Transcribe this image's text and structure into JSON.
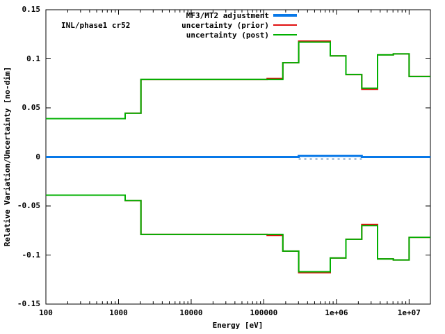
{
  "annotation": "INL/phase1 cr52",
  "legend": {
    "items": [
      {
        "label": "MF3/MT2 adjustment",
        "color": "#0878e8",
        "thickness": 4
      },
      {
        "label": "uncertainty (prior)",
        "color": "#e01010",
        "thickness": 2
      },
      {
        "label": "uncertainty (post)",
        "color": "#00b000",
        "thickness": 2
      }
    ]
  },
  "axes": {
    "xlabel": "Energy [eV]",
    "ylabel": "Relative Variation/Uncertainty [no-dim]",
    "x_scale": "log",
    "xlim": [
      100,
      19640000
    ],
    "ylim": [
      -0.15,
      0.15
    ],
    "x_tick_values": [
      100,
      1000,
      10000,
      100000,
      1000000,
      10000000
    ],
    "x_tick_labels": [
      "100",
      "1000",
      "10000",
      "100000",
      "1e+06",
      "1e+07"
    ],
    "y_tick_values": [
      0.15,
      0.1,
      0.05,
      0,
      -0.05,
      -0.1,
      -0.15
    ],
    "y_tick_labels": [
      "0.15",
      "0.1",
      "0.05",
      "0",
      "-0.05",
      "-0.1",
      "-0.15"
    ],
    "grid": "off",
    "legend_position": "top-right-inside"
  },
  "chart_data": {
    "type": "line",
    "style": "step-histogram",
    "x_boundaries": [
      100,
      1234,
      2035,
      111000,
      183000,
      302000,
      821000,
      1350000,
      2230000,
      3680000,
      6070000,
      10000000,
      19640000
    ],
    "series": [
      {
        "name": "MF3/MT2 adjustment",
        "color": "#0878e8",
        "width": 3,
        "values": [
          0,
          0,
          0,
          0,
          0,
          0.001,
          0.001,
          0.001,
          0,
          0,
          0,
          0
        ]
      },
      {
        "name": "uncertainty (prior) upper",
        "color": "#e01010",
        "width": 2,
        "values": [
          0.039,
          0.0445,
          0.079,
          0.08,
          0.096,
          0.118,
          0.103,
          0.084,
          0.069,
          0.104,
          0.105,
          0.082
        ]
      },
      {
        "name": "uncertainty (prior) lower",
        "color": "#e01010",
        "width": 2,
        "values": [
          -0.039,
          -0.0445,
          -0.079,
          -0.08,
          -0.096,
          -0.118,
          -0.103,
          -0.084,
          -0.069,
          -0.104,
          -0.105,
          -0.082
        ]
      },
      {
        "name": "uncertainty (post) upper",
        "color": "#00b000",
        "width": 2,
        "values": [
          0.039,
          0.0445,
          0.079,
          0.079,
          0.096,
          0.117,
          0.103,
          0.084,
          0.07,
          0.104,
          0.105,
          0.082
        ]
      },
      {
        "name": "uncertainty (post) lower",
        "color": "#00b000",
        "width": 2,
        "values": [
          -0.039,
          -0.0445,
          -0.079,
          -0.079,
          -0.096,
          -0.117,
          -0.103,
          -0.084,
          -0.07,
          -0.104,
          -0.105,
          -0.082
        ]
      }
    ],
    "zero_dash": {
      "x_range": [
        302000,
        2230000
      ],
      "color": "#7aa0c8",
      "value": 0
    }
  }
}
